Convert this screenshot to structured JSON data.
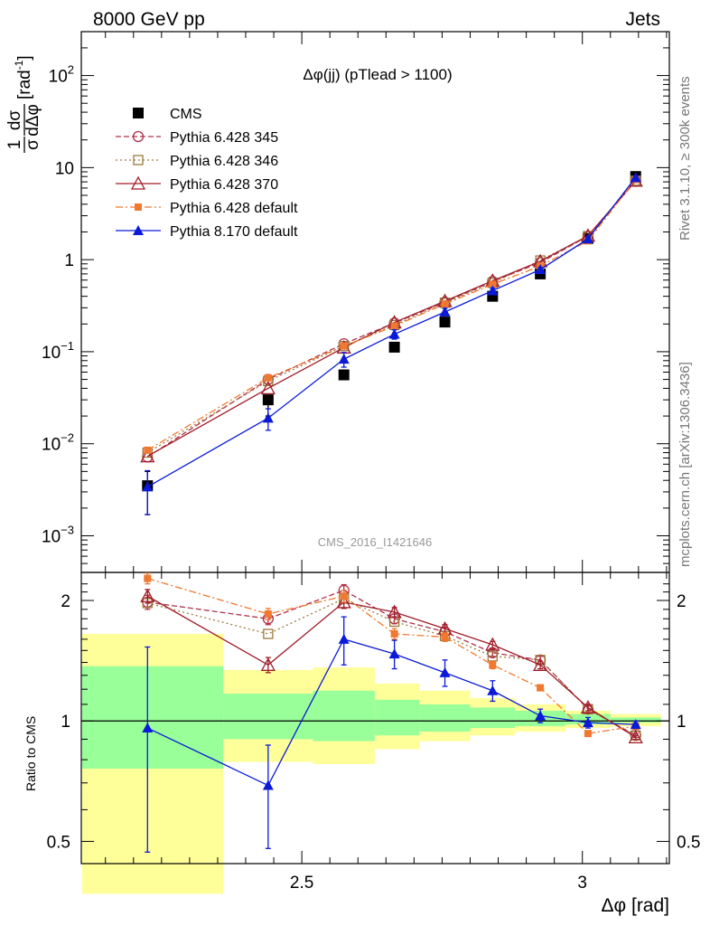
{
  "header": {
    "energy_label": "8000 GeV pp",
    "process_label": "Jets",
    "side_label_rivet": "Rivet 3.1.10, ≥ 300k events",
    "side_label_mcplots": "mcplots.cern.ch [arXiv:1306.3436]",
    "analysis_id": "CMS_2016_I1421646"
  },
  "chart_data": [
    {
      "type": "scatter",
      "title": "Δφ(jj) (pTlead >  1100)",
      "xlabel": "Δφ [rad]",
      "ylabel": "1/σ dσ/dΔφ [rad⁻¹]",
      "ylabel_parts": {
        "num_top": "1",
        "num_bot": "σ",
        "den_top": "dσ",
        "den_bot": "dΔφ",
        "units": "[rad",
        "units_sup": "-1",
        "units_close": "]"
      },
      "yscale": "log",
      "xlim": [
        2.107,
        3.155
      ],
      "ylim": [
        0.0004,
        300
      ],
      "x_ticks": [
        2.5,
        3
      ],
      "y_tick_labels": [
        {
          "base": "10",
          "exp": "2"
        },
        {
          "base": "10",
          "exp": ""
        },
        {
          "base": "1",
          "exp": ""
        },
        {
          "base": "10",
          "exp": "−1"
        },
        {
          "base": "10",
          "exp": "−2"
        },
        {
          "base": "10",
          "exp": "−3"
        }
      ],
      "x": [
        2.225,
        2.44,
        2.575,
        2.665,
        2.755,
        2.84,
        2.925,
        3.01,
        3.095
      ],
      "legend_position": "top-left",
      "series": [
        {
          "name": "CMS",
          "color": "#000000",
          "marker": "square-filled",
          "dash": "none",
          "values": [
            0.0035,
            0.03,
            0.056,
            0.112,
            0.21,
            0.4,
            0.7,
            1.7,
            8.0
          ],
          "yerr_low": [
            0.0018,
            0.01,
            0.0,
            0.0,
            0.0,
            0.0,
            0.0,
            0.0,
            0.0
          ],
          "yerr_high": [
            0.0015,
            0.0,
            0.0,
            0.0,
            0.0,
            0.0,
            0.0,
            0.0,
            0.0
          ]
        },
        {
          "name": "Pythia 6.428 345",
          "color": "#b03048",
          "marker": "circle-open",
          "dash": "6,3",
          "values": [
            0.0072,
            0.05,
            0.122,
            0.205,
            0.345,
            0.58,
            0.93,
            1.8,
            7.1
          ],
          "yerr_low": [
            0,
            0,
            0,
            0,
            0,
            0,
            0,
            0,
            0
          ],
          "yerr_high": [
            0,
            0,
            0,
            0,
            0,
            0,
            0,
            0,
            0
          ]
        },
        {
          "name": "Pythia 6.428 346",
          "color": "#9c7a3c",
          "marker": "square-open",
          "dash": "2,3",
          "values": [
            0.008,
            0.048,
            0.115,
            0.195,
            0.34,
            0.56,
            0.98,
            1.8,
            7.2
          ],
          "yerr_low": [
            0,
            0,
            0,
            0,
            0,
            0,
            0,
            0,
            0
          ],
          "yerr_high": [
            0,
            0,
            0,
            0,
            0,
            0,
            0,
            0,
            0
          ]
        },
        {
          "name": "Pythia 6.428 370",
          "color": "#a01c28",
          "marker": "triangle-open",
          "dash": "none",
          "values": [
            0.0073,
            0.04,
            0.111,
            0.208,
            0.355,
            0.59,
            0.96,
            1.82,
            7.2
          ],
          "yerr_low": [
            0,
            0,
            0,
            0,
            0,
            0,
            0,
            0,
            0
          ],
          "yerr_high": [
            0,
            0,
            0,
            0,
            0,
            0,
            0,
            0,
            0
          ]
        },
        {
          "name": "Pythia 6.428 default",
          "color": "#f07830",
          "marker": "square-filled",
          "dash": "8,3,2,3",
          "values": [
            0.0085,
            0.052,
            0.115,
            0.19,
            0.33,
            0.54,
            0.85,
            1.6,
            7.4
          ],
          "yerr_low": [
            0,
            0,
            0,
            0,
            0,
            0,
            0,
            0,
            0
          ],
          "yerr_high": [
            0,
            0,
            0,
            0,
            0,
            0,
            0,
            0,
            0
          ]
        },
        {
          "name": "Pythia 8.170 default",
          "color": "#0a1ad8",
          "marker": "triangle-filled",
          "dash": "none",
          "values": [
            0.0034,
            0.019,
            0.083,
            0.155,
            0.27,
            0.46,
            0.78,
            1.68,
            7.8
          ],
          "yerr_low": [
            0.0017,
            0.005,
            0.015,
            0.018,
            0.025,
            0.03,
            0.04,
            0.08,
            0.2
          ],
          "yerr_high": [
            0.0017,
            0.005,
            0.015,
            0.018,
            0.025,
            0.03,
            0.04,
            0.08,
            0.2
          ]
        }
      ]
    },
    {
      "type": "scatter",
      "title": "",
      "xlabel": "Δφ [rad]",
      "ylabel": "Ratio to CMS",
      "yscale": "log",
      "xlim": [
        2.107,
        3.155
      ],
      "ylim": [
        0.44,
        2.35
      ],
      "y_ticks": [
        0.5,
        1,
        2
      ],
      "y_tick_labels": [
        "0.5",
        "1",
        "2"
      ],
      "x": [
        2.225,
        2.44,
        2.575,
        2.665,
        2.755,
        2.84,
        2.925,
        3.01,
        3.095
      ],
      "bands": {
        "bin_edges": [
          2.1,
          2.36,
          2.52,
          2.63,
          2.71,
          2.8,
          2.88,
          2.97,
          3.05,
          3.14
        ],
        "yellow_low": [
          0.37,
          0.79,
          0.78,
          0.85,
          0.89,
          0.92,
          0.94,
          0.96,
          0.97
        ],
        "yellow_high": [
          1.65,
          1.34,
          1.36,
          1.24,
          1.19,
          1.14,
          1.1,
          1.06,
          1.04
        ],
        "green_low": [
          0.76,
          0.9,
          0.89,
          0.92,
          0.94,
          0.96,
          0.97,
          0.98,
          0.99
        ],
        "green_high": [
          1.37,
          1.17,
          1.19,
          1.13,
          1.1,
          1.08,
          1.06,
          1.04,
          1.02
        ]
      },
      "series": [
        {
          "name": "Pythia 6.428 345",
          "color": "#b03048",
          "marker": "circle-open",
          "dash": "6,3",
          "values": [
            1.98,
            1.8,
            2.12,
            1.8,
            1.67,
            1.48,
            1.42,
            1.07,
            0.92
          ],
          "yerr_low": [
            0.08,
            0.06,
            0.07,
            0.05,
            0.04,
            0.03,
            0.03,
            0.02,
            0.01
          ],
          "yerr_high": [
            0.08,
            0.06,
            0.07,
            0.05,
            0.04,
            0.03,
            0.03,
            0.02,
            0.01
          ]
        },
        {
          "name": "Pythia 6.428 346",
          "color": "#9c7a3c",
          "marker": "square-open",
          "dash": "2,3",
          "values": [
            1.97,
            1.65,
            2.02,
            1.77,
            1.63,
            1.45,
            1.42,
            1.07,
            0.92
          ],
          "yerr_low": [
            0,
            0,
            0,
            0,
            0,
            0,
            0,
            0,
            0
          ],
          "yerr_high": [
            0,
            0,
            0,
            0,
            0,
            0,
            0,
            0,
            0
          ]
        },
        {
          "name": "Pythia 6.428 370",
          "color": "#a01c28",
          "marker": "triangle-open",
          "dash": "none",
          "values": [
            2.05,
            1.38,
            1.98,
            1.87,
            1.7,
            1.55,
            1.38,
            1.08,
            0.91
          ],
          "yerr_low": [
            0.08,
            0.06,
            0.07,
            0.05,
            0.04,
            0.03,
            0.03,
            0.02,
            0.01
          ],
          "yerr_high": [
            0.08,
            0.06,
            0.07,
            0.05,
            0.04,
            0.03,
            0.03,
            0.02,
            0.01
          ]
        },
        {
          "name": "Pythia 6.428 default",
          "color": "#f07830",
          "marker": "square-filled",
          "dash": "8,3,2,3",
          "values": [
            2.27,
            1.85,
            2.05,
            1.65,
            1.62,
            1.38,
            1.21,
            0.93,
            0.97
          ],
          "yerr_low": [
            0.07,
            0.06,
            0.07,
            0.05,
            0.04,
            0.03,
            0.02,
            0.01,
            0.01
          ],
          "yerr_high": [
            0.07,
            0.06,
            0.07,
            0.05,
            0.04,
            0.03,
            0.02,
            0.01,
            0.01
          ]
        },
        {
          "name": "Pythia 8.170 default",
          "color": "#0a1ad8",
          "marker": "triangle-filled",
          "dash": "none",
          "values": [
            0.96,
            0.69,
            1.6,
            1.47,
            1.32,
            1.19,
            1.03,
            0.99,
            0.98
          ],
          "yerr_low": [
            0.49,
            0.21,
            0.22,
            0.12,
            0.1,
            0.07,
            0.04,
            0.03,
            0.02
          ],
          "yerr_high": [
            0.57,
            0.18,
            0.22,
            0.12,
            0.1,
            0.07,
            0.04,
            0.03,
            0.02
          ]
        }
      ]
    }
  ]
}
